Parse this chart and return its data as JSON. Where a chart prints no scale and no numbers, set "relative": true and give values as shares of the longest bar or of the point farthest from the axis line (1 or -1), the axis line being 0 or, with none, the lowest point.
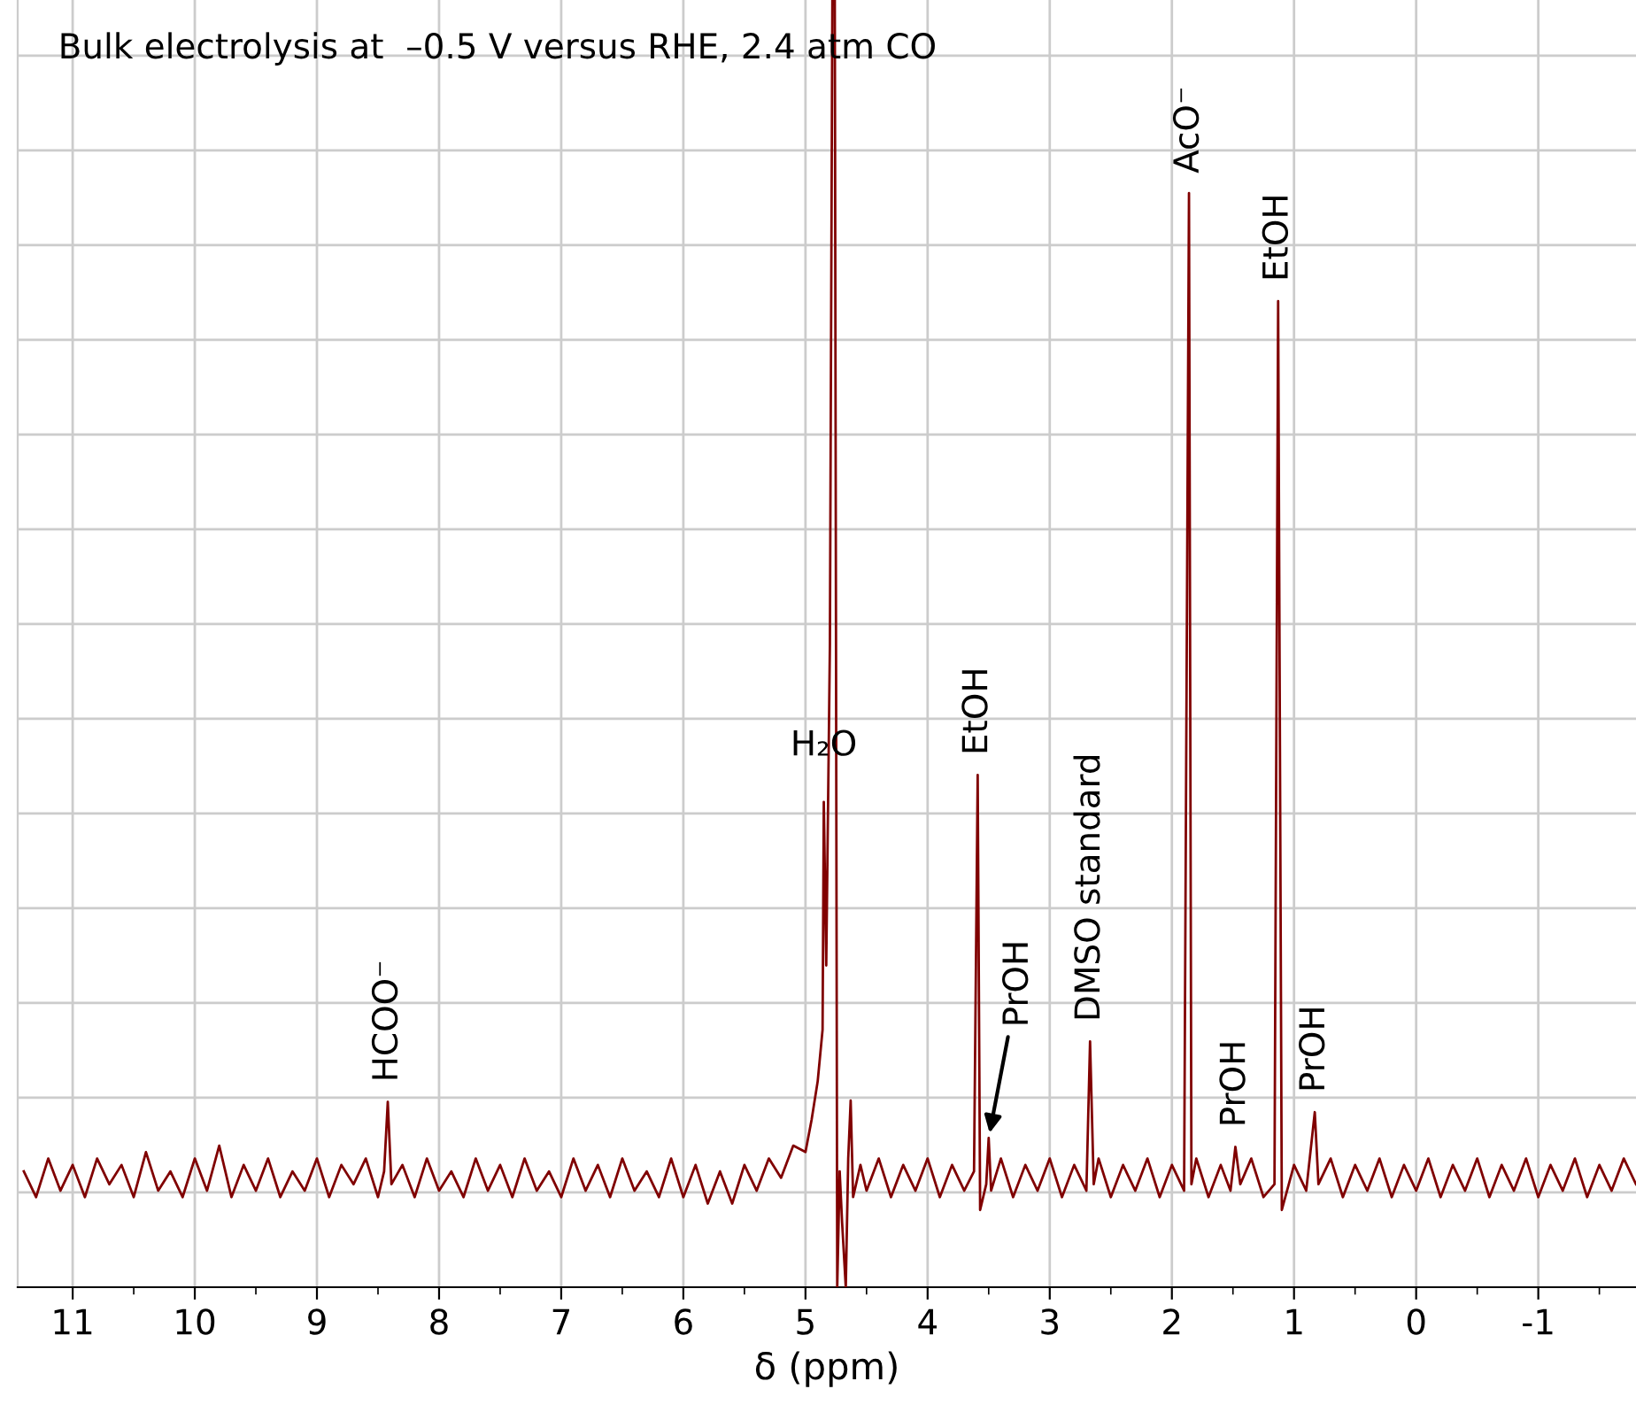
{
  "chart_data": {
    "type": "line",
    "relative": true,
    "xlabel": "δ (ppm)",
    "xlim": [
      11.45,
      -1.8
    ],
    "xticks": [
      11,
      10,
      9,
      8,
      7,
      6,
      5,
      4,
      3,
      2,
      1,
      0,
      -1
    ],
    "grid": true,
    "marker": "none",
    "line_style": "solid",
    "series": [
      {
        "color": "#800000",
        "x": [
          11.4,
          11.3,
          11.2,
          11.1,
          11.0,
          10.9,
          10.8,
          10.7,
          10.6,
          10.5,
          10.4,
          10.3,
          10.2,
          10.1,
          10.0,
          9.9,
          9.8,
          9.7,
          9.6,
          9.5,
          9.4,
          9.3,
          9.2,
          9.1,
          9.0,
          8.9,
          8.8,
          8.7,
          8.6,
          8.5,
          8.45,
          8.42,
          8.39,
          8.3,
          8.2,
          8.1,
          8.0,
          7.9,
          7.8,
          7.7,
          7.6,
          7.5,
          7.4,
          7.3,
          7.2,
          7.1,
          7.0,
          6.9,
          6.8,
          6.7,
          6.6,
          6.5,
          6.4,
          6.3,
          6.2,
          6.1,
          6.0,
          5.9,
          5.8,
          5.7,
          5.6,
          5.5,
          5.4,
          5.3,
          5.2,
          5.1,
          5.0,
          4.95,
          4.9,
          4.86,
          4.85,
          4.83,
          4.8,
          4.78,
          4.76,
          4.74,
          4.72,
          4.7,
          4.67,
          4.65,
          4.63,
          4.61,
          4.55,
          4.5,
          4.4,
          4.3,
          4.2,
          4.1,
          4.0,
          3.9,
          3.8,
          3.7,
          3.62,
          3.59,
          3.57,
          3.52,
          3.5,
          3.48,
          3.4,
          3.3,
          3.2,
          3.1,
          3.0,
          2.9,
          2.8,
          2.7,
          2.67,
          2.64,
          2.6,
          2.5,
          2.4,
          2.3,
          2.2,
          2.1,
          2.0,
          1.9,
          1.86,
          1.84,
          1.8,
          1.7,
          1.6,
          1.52,
          1.48,
          1.44,
          1.35,
          1.25,
          1.16,
          1.13,
          1.1,
          1.0,
          0.9,
          0.83,
          0.8,
          0.7,
          0.6,
          0.5,
          0.4,
          0.3,
          0.2,
          0.1,
          0.0,
          -0.1,
          -0.2,
          -0.3,
          -0.4,
          -0.5,
          -0.6,
          -0.7,
          -0.8,
          -0.9,
          -1.0,
          -1.1,
          -1.2,
          -1.3,
          -1.4,
          -1.5,
          -1.6,
          -1.7,
          -1.8
        ],
        "values": [
          0.09,
          0.07,
          0.1,
          0.075,
          0.095,
          0.07,
          0.1,
          0.08,
          0.095,
          0.07,
          0.105,
          0.075,
          0.09,
          0.07,
          0.1,
          0.075,
          0.11,
          0.07,
          0.095,
          0.075,
          0.1,
          0.07,
          0.09,
          0.075,
          0.1,
          0.07,
          0.095,
          0.08,
          0.1,
          0.07,
          0.09,
          0.144,
          0.08,
          0.095,
          0.07,
          0.1,
          0.075,
          0.09,
          0.07,
          0.1,
          0.075,
          0.095,
          0.07,
          0.1,
          0.075,
          0.09,
          0.07,
          0.1,
          0.075,
          0.095,
          0.07,
          0.1,
          0.075,
          0.09,
          0.07,
          0.1,
          0.07,
          0.095,
          0.065,
          0.09,
          0.065,
          0.095,
          0.075,
          0.1,
          0.085,
          0.11,
          0.105,
          0.13,
          0.16,
          0.2,
          0.377,
          0.25,
          0.5,
          1.0,
          1.0,
          0,
          0.09,
          0.05,
          0,
          0.1,
          0.145,
          0.07,
          0.095,
          0.075,
          0.1,
          0.07,
          0.095,
          0.075,
          0.1,
          0.07,
          0.095,
          0.075,
          0.09,
          0.398,
          0.06,
          0.08,
          0.116,
          0.075,
          0.1,
          0.07,
          0.095,
          0.075,
          0.1,
          0.07,
          0.095,
          0.075,
          0.191,
          0.08,
          0.1,
          0.07,
          0.095,
          0.075,
          0.1,
          0.07,
          0.095,
          0.075,
          0.85,
          0.08,
          0.1,
          0.07,
          0.095,
          0.075,
          0.109,
          0.08,
          0.1,
          0.07,
          0.08,
          0.766,
          0.06,
          0.095,
          0.075,
          0.136,
          0.08,
          0.1,
          0.07,
          0.095,
          0.075,
          0.1,
          0.07,
          0.095,
          0.075,
          0.1,
          0.07,
          0.095,
          0.075,
          0.1,
          0.07,
          0.095,
          0.075,
          0.1,
          0.07,
          0.095,
          0.075,
          0.1,
          0.07,
          0.095,
          0.075,
          0.1,
          0.08
        ]
      }
    ],
    "annotations": [
      "Bulk electrolysis at  –0.5 V versus RHE, 2.4 atm CO",
      {
        "text": "HCOO⁻",
        "x": 8.42,
        "y": 0.144
      },
      {
        "text": "H₂O",
        "x": 4.85,
        "y": 0.377
      },
      {
        "text": "EtOH",
        "x": 3.59,
        "y": 0.398
      },
      {
        "text": "PrOH",
        "x": 3.5,
        "y": 0.116
      },
      {
        "text": "DMSO standard",
        "x": 2.67,
        "y": 0.191
      },
      {
        "text": "AcO⁻",
        "x": 1.86,
        "y": 0.85
      },
      {
        "text": "PrOH",
        "x": 1.48,
        "y": 0.109
      },
      {
        "text": "EtOH",
        "x": 1.13,
        "y": 0.766
      },
      {
        "text": "PrOH",
        "x": 0.83,
        "y": 0.136
      }
    ]
  }
}
